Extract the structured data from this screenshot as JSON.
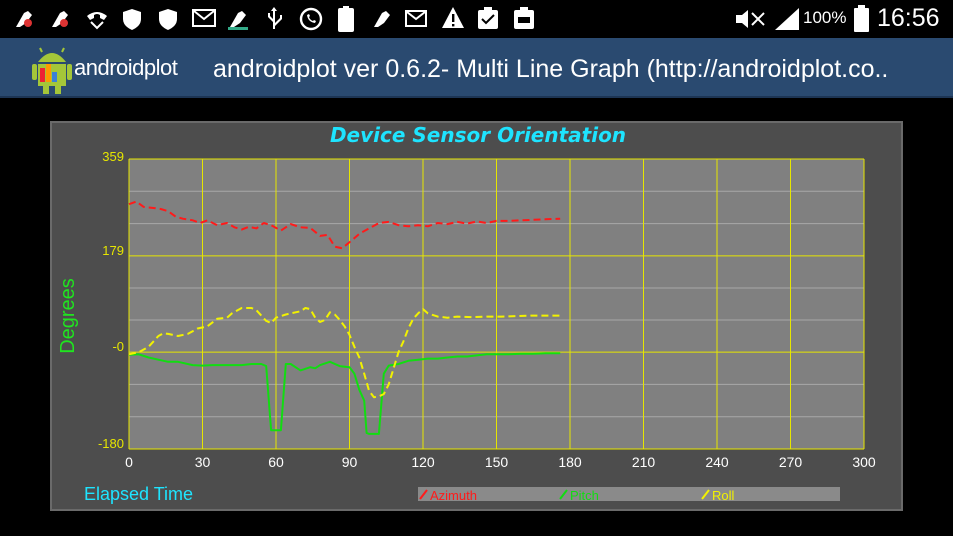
{
  "status_bar": {
    "battery_percent": "100%",
    "time": "16:56",
    "icons": [
      "app-update-icon",
      "app-update-icon",
      "missed-call-icon",
      "shield-icon",
      "shield-icon",
      "mail-icon",
      "app-update-icon",
      "usb-icon",
      "whatsapp-icon",
      "battery-100-icon",
      "app-update-icon",
      "email-notification-icon",
      "warning-icon",
      "clipboard-icon",
      "clipboard-icon",
      "mute-icon",
      "signal-icon",
      "battery-icon"
    ]
  },
  "action_bar": {
    "logo_text": "androidplot",
    "title": "androidplot ver 0.6.2- Multi Line Graph (http://androidplot.co.."
  },
  "colors": {
    "plot_bg": "#808080",
    "grid": "#e6e600",
    "title": "#1ee4ff",
    "azimuth": "#ff1a1a",
    "pitch": "#11dd11",
    "roll": "#f2f200"
  },
  "chart_data": {
    "type": "line",
    "title": "Device Sensor Orientation",
    "xlabel": "Elapsed Time",
    "ylabel": "Degrees",
    "xlim": [
      0,
      300
    ],
    "ylim": [
      -180,
      359
    ],
    "x_ticks": [
      0,
      30,
      60,
      90,
      120,
      150,
      180,
      210,
      240,
      270,
      300
    ],
    "y_ticks": [
      "-180",
      "-0",
      "179",
      "359"
    ],
    "grid": true,
    "legend_position": "bottom",
    "series": [
      {
        "name": "Azimuth",
        "style": "dashed",
        "points": [
          [
            0,
            275
          ],
          [
            3,
            280
          ],
          [
            6,
            270
          ],
          [
            10,
            268
          ],
          [
            13,
            266
          ],
          [
            16,
            262
          ],
          [
            19,
            252
          ],
          [
            22,
            248
          ],
          [
            26,
            245
          ],
          [
            29,
            240
          ],
          [
            32,
            245
          ],
          [
            36,
            236
          ],
          [
            40,
            240
          ],
          [
            43,
            232
          ],
          [
            46,
            228
          ],
          [
            49,
            233
          ],
          [
            52,
            230
          ],
          [
            55,
            240
          ],
          [
            58,
            236
          ],
          [
            62,
            226
          ],
          [
            66,
            238
          ],
          [
            70,
            232
          ],
          [
            74,
            231
          ],
          [
            78,
            216
          ],
          [
            81,
            218
          ],
          [
            84,
            196
          ],
          [
            87,
            193
          ],
          [
            91,
            208
          ],
          [
            94,
            220
          ],
          [
            98,
            230
          ],
          [
            102,
            240
          ],
          [
            106,
            242
          ],
          [
            110,
            236
          ],
          [
            114,
            234
          ],
          [
            118,
            236
          ],
          [
            122,
            234
          ],
          [
            126,
            240
          ],
          [
            130,
            238
          ],
          [
            134,
            242
          ],
          [
            138,
            239
          ],
          [
            142,
            243
          ],
          [
            146,
            240
          ],
          [
            150,
            244
          ],
          [
            155,
            244
          ],
          [
            160,
            245
          ],
          [
            165,
            246
          ],
          [
            170,
            247
          ],
          [
            176,
            248
          ]
        ]
      },
      {
        "name": "Pitch",
        "style": "solid",
        "points": [
          [
            0,
            -5
          ],
          [
            4,
            -4
          ],
          [
            8,
            -10
          ],
          [
            12,
            -14
          ],
          [
            16,
            -18
          ],
          [
            20,
            -18
          ],
          [
            26,
            -24
          ],
          [
            30,
            -25
          ],
          [
            34,
            -24
          ],
          [
            38,
            -24
          ],
          [
            42,
            -24
          ],
          [
            46,
            -24
          ],
          [
            50,
            -22
          ],
          [
            52,
            -22
          ],
          [
            54,
            -22
          ],
          [
            56,
            -26
          ],
          [
            58,
            -145
          ],
          [
            60,
            -145
          ],
          [
            62,
            -145
          ],
          [
            64,
            -22
          ],
          [
            66,
            -22
          ],
          [
            70,
            -34
          ],
          [
            74,
            -28
          ],
          [
            76,
            -30
          ],
          [
            78,
            -24
          ],
          [
            82,
            -18
          ],
          [
            86,
            -26
          ],
          [
            90,
            -28
          ],
          [
            92,
            -40
          ],
          [
            94,
            -70
          ],
          [
            96,
            -90
          ],
          [
            97,
            -150
          ],
          [
            98,
            -152
          ],
          [
            100,
            -152
          ],
          [
            102,
            -152
          ],
          [
            104,
            -40
          ],
          [
            106,
            -25
          ],
          [
            110,
            -22
          ],
          [
            114,
            -16
          ],
          [
            118,
            -14
          ],
          [
            122,
            -12
          ],
          [
            126,
            -12
          ],
          [
            130,
            -10
          ],
          [
            134,
            -8
          ],
          [
            138,
            -8
          ],
          [
            142,
            -6
          ],
          [
            146,
            -4
          ],
          [
            150,
            -4
          ],
          [
            155,
            -4
          ],
          [
            160,
            -3
          ],
          [
            165,
            -3
          ],
          [
            170,
            -2
          ],
          [
            176,
            -2
          ]
        ]
      },
      {
        "name": "Roll",
        "style": "dashed",
        "points": [
          [
            0,
            -4
          ],
          [
            4,
            0
          ],
          [
            8,
            10
          ],
          [
            10,
            20
          ],
          [
            12,
            30
          ],
          [
            14,
            35
          ],
          [
            16,
            34
          ],
          [
            18,
            32
          ],
          [
            20,
            30
          ],
          [
            24,
            34
          ],
          [
            28,
            44
          ],
          [
            32,
            48
          ],
          [
            36,
            62
          ],
          [
            40,
            64
          ],
          [
            42,
            72
          ],
          [
            46,
            82
          ],
          [
            50,
            82
          ],
          [
            52,
            78
          ],
          [
            54,
            68
          ],
          [
            56,
            58
          ],
          [
            58,
            54
          ],
          [
            60,
            64
          ],
          [
            64,
            70
          ],
          [
            68,
            74
          ],
          [
            70,
            76
          ],
          [
            72,
            82
          ],
          [
            74,
            80
          ],
          [
            76,
            64
          ],
          [
            78,
            56
          ],
          [
            80,
            60
          ],
          [
            82,
            74
          ],
          [
            84,
            70
          ],
          [
            86,
            60
          ],
          [
            88,
            48
          ],
          [
            90,
            32
          ],
          [
            92,
            10
          ],
          [
            94,
            -10
          ],
          [
            96,
            -40
          ],
          [
            98,
            -72
          ],
          [
            100,
            -84
          ],
          [
            102,
            -82
          ],
          [
            104,
            -78
          ],
          [
            106,
            -60
          ],
          [
            108,
            -30
          ],
          [
            110,
            0
          ],
          [
            112,
            20
          ],
          [
            114,
            44
          ],
          [
            116,
            62
          ],
          [
            118,
            72
          ],
          [
            120,
            80
          ],
          [
            122,
            72
          ],
          [
            126,
            66
          ],
          [
            130,
            64
          ],
          [
            134,
            66
          ],
          [
            140,
            65
          ],
          [
            146,
            66
          ],
          [
            152,
            66
          ],
          [
            158,
            67
          ],
          [
            164,
            68
          ],
          [
            170,
            68
          ],
          [
            176,
            68
          ]
        ]
      }
    ]
  }
}
